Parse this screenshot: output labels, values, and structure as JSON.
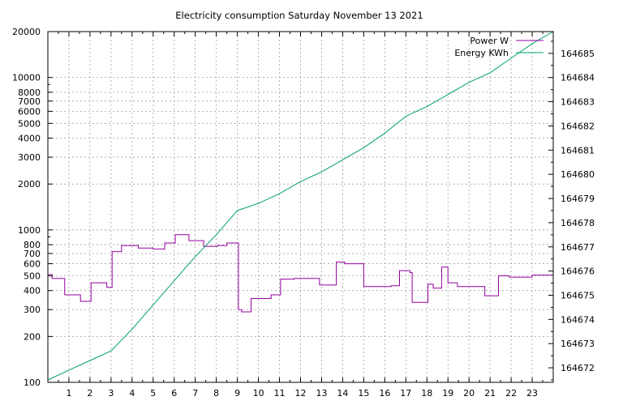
{
  "chart_data": {
    "type": "line",
    "title": "Electricity consumption Saturday November 13 2021",
    "x_range": [
      0,
      24
    ],
    "x_ticks": [
      1,
      2,
      3,
      4,
      5,
      6,
      7,
      8,
      9,
      10,
      11,
      12,
      13,
      14,
      15,
      16,
      17,
      18,
      19,
      20,
      21,
      22,
      23
    ],
    "y_left": {
      "scale": "log",
      "range": [
        100,
        20000
      ],
      "ticks": [
        100,
        200,
        300,
        400,
        500,
        600,
        700,
        800,
        1000,
        2000,
        3000,
        4000,
        5000,
        6000,
        7000,
        8000,
        10000,
        20000
      ]
    },
    "y_right": {
      "scale": "linear",
      "range": [
        164671.4,
        164685.9
      ],
      "ticks": [
        164672,
        164673,
        164674,
        164675,
        164676,
        164677,
        164678,
        164679,
        164680,
        164681,
        164682,
        164683,
        164684,
        164685
      ]
    },
    "grid": true,
    "legend_position": "top-right",
    "series": [
      {
        "name": "Power W",
        "axis": "left",
        "style": "step",
        "color": "#94009f",
        "points": [
          [
            0,
            510
          ],
          [
            0.2,
            480
          ],
          [
            0.8,
            375
          ],
          [
            1.55,
            340
          ],
          [
            2.05,
            450
          ],
          [
            2.8,
            420
          ],
          [
            3.05,
            720
          ],
          [
            3.5,
            790
          ],
          [
            4.3,
            760
          ],
          [
            5,
            750
          ],
          [
            5.55,
            820
          ],
          [
            6.05,
            930
          ],
          [
            6.7,
            850
          ],
          [
            7.4,
            780
          ],
          [
            8.05,
            790
          ],
          [
            8.5,
            820
          ],
          [
            9.05,
            300
          ],
          [
            9.2,
            290
          ],
          [
            9.65,
            355
          ],
          [
            10.6,
            375
          ],
          [
            11.05,
            475
          ],
          [
            11.7,
            480
          ],
          [
            12.9,
            435
          ],
          [
            13.7,
            615
          ],
          [
            14.1,
            600
          ],
          [
            15,
            425
          ],
          [
            16.3,
            430
          ],
          [
            16.7,
            540
          ],
          [
            17.2,
            525
          ],
          [
            17.3,
            335
          ],
          [
            18.05,
            440
          ],
          [
            18.3,
            415
          ],
          [
            18.7,
            570
          ],
          [
            19,
            450
          ],
          [
            19.45,
            425
          ],
          [
            20.75,
            370
          ],
          [
            21.4,
            500
          ],
          [
            21.9,
            490
          ],
          [
            23,
            505
          ],
          [
            24,
            500
          ]
        ]
      },
      {
        "name": "Energy KWh",
        "axis": "right",
        "style": "line",
        "color": "#009e73",
        "points": [
          [
            0,
            164671.5
          ],
          [
            1,
            164671.9
          ],
          [
            2,
            164672.3
          ],
          [
            3,
            164672.7
          ],
          [
            4,
            164673.6
          ],
          [
            5,
            164674.6
          ],
          [
            6,
            164675.6
          ],
          [
            7,
            164676.6
          ],
          [
            8,
            164677.5
          ],
          [
            9,
            164678.5
          ],
          [
            10,
            164678.8
          ],
          [
            11,
            164679.2
          ],
          [
            12,
            164679.7
          ],
          [
            13,
            164680.1
          ],
          [
            14,
            164680.6
          ],
          [
            15,
            164681.1
          ],
          [
            16,
            164681.7
          ],
          [
            17,
            164682.4
          ],
          [
            18,
            164682.8
          ],
          [
            19,
            164683.3
          ],
          [
            20,
            164683.8
          ],
          [
            21,
            164684.2
          ],
          [
            22,
            164684.8
          ],
          [
            23,
            164685.4
          ],
          [
            24,
            164685.9
          ]
        ]
      }
    ]
  }
}
